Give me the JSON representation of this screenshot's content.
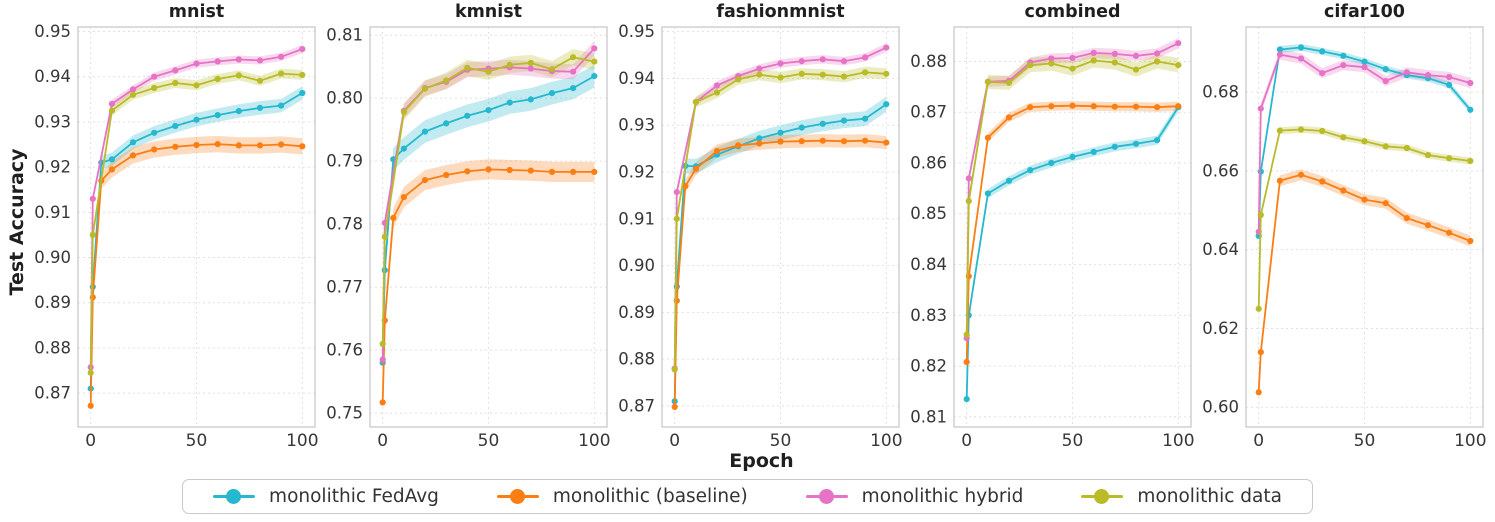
{
  "figure": {
    "ylabel": "Test Accuracy",
    "xlabel": "Epoch"
  },
  "legend": {
    "position": "bottom-center",
    "items": [
      {
        "key": "fedavg",
        "label": "monolithic FedAvg",
        "color": "#25b8ce"
      },
      {
        "key": "baseline",
        "label": "monolithic (baseline)",
        "color": "#fb7e14"
      },
      {
        "key": "hybrid",
        "label": "monolithic hybrid",
        "color": "#e673c5"
      },
      {
        "key": "data",
        "label": "monolithic data",
        "color": "#b9bb27"
      }
    ]
  },
  "chart_data": [
    {
      "type": "line",
      "title": "mnist",
      "xlim": [
        -6,
        106
      ],
      "ylim": [
        0.8625,
        0.951
      ],
      "xticks": [
        0,
        50,
        100
      ],
      "yticks": [
        0.87,
        0.88,
        0.89,
        0.9,
        0.91,
        0.92,
        0.93,
        0.94,
        0.95
      ],
      "grid": true,
      "series": [
        {
          "key": "fedavg",
          "band": 0.0015,
          "x": [
            0,
            1,
            5,
            10,
            20,
            30,
            40,
            50,
            60,
            70,
            80,
            90,
            100
          ],
          "y": [
            0.871,
            0.8935,
            0.921,
            0.9217,
            0.9255,
            0.9276,
            0.9291,
            0.9305,
            0.9315,
            0.9324,
            0.9331,
            0.9336,
            0.9364
          ]
        },
        {
          "key": "baseline",
          "band": 0.0018,
          "x": [
            0,
            1,
            5,
            10,
            20,
            30,
            40,
            50,
            60,
            70,
            80,
            90,
            100
          ],
          "y": [
            0.8672,
            0.8912,
            0.917,
            0.9195,
            0.9226,
            0.9239,
            0.9245,
            0.9249,
            0.9251,
            0.9248,
            0.9248,
            0.925,
            0.9246
          ]
        },
        {
          "key": "hybrid",
          "band": 0.0009,
          "x": [
            0,
            1,
            10,
            20,
            30,
            40,
            50,
            60,
            70,
            80,
            90,
            100
          ],
          "y": [
            0.8757,
            0.913,
            0.934,
            0.9372,
            0.94,
            0.9414,
            0.9429,
            0.9434,
            0.9438,
            0.9436,
            0.9444,
            0.9461
          ]
        },
        {
          "key": "data",
          "band": 0.0011,
          "x": [
            0,
            1,
            10,
            20,
            30,
            40,
            50,
            60,
            70,
            80,
            90,
            100
          ],
          "y": [
            0.8745,
            0.905,
            0.9325,
            0.936,
            0.9375,
            0.9386,
            0.9381,
            0.9395,
            0.9403,
            0.9391,
            0.9407,
            0.9404
          ]
        }
      ]
    },
    {
      "type": "line",
      "title": "kmnist",
      "xlim": [
        -6,
        106
      ],
      "ylim": [
        0.7478,
        0.8113
      ],
      "xticks": [
        0,
        50,
        100
      ],
      "yticks": [
        0.75,
        0.76,
        0.77,
        0.78,
        0.79,
        0.8,
        0.81
      ],
      "grid": true,
      "series": [
        {
          "key": "fedavg",
          "band": 0.0018,
          "x": [
            0,
            1,
            5,
            10,
            20,
            30,
            40,
            50,
            60,
            70,
            80,
            90,
            100
          ],
          "y": [
            0.758,
            0.7727,
            0.7903,
            0.792,
            0.7947,
            0.796,
            0.7972,
            0.7981,
            0.7993,
            0.7998,
            0.8008,
            0.8016,
            0.8035
          ]
        },
        {
          "key": "baseline",
          "band": 0.0016,
          "x": [
            0,
            1,
            5,
            10,
            20,
            30,
            40,
            50,
            60,
            70,
            80,
            90,
            100
          ],
          "y": [
            0.7517,
            0.7647,
            0.781,
            0.7843,
            0.787,
            0.7878,
            0.7884,
            0.7887,
            0.7886,
            0.7885,
            0.7883,
            0.7883,
            0.7883
          ]
        },
        {
          "key": "hybrid",
          "band": 0.0012,
          "x": [
            0,
            1,
            10,
            20,
            30,
            40,
            50,
            60,
            70,
            80,
            90,
            100
          ],
          "y": [
            0.7585,
            0.7802,
            0.798,
            0.8016,
            0.8026,
            0.8045,
            0.8047,
            0.8049,
            0.8047,
            0.8043,
            0.8042,
            0.8079
          ]
        },
        {
          "key": "data",
          "band": 0.0013,
          "x": [
            0,
            1,
            10,
            20,
            30,
            40,
            50,
            60,
            70,
            80,
            90,
            100
          ],
          "y": [
            0.761,
            0.778,
            0.7978,
            0.8015,
            0.8028,
            0.8048,
            0.8042,
            0.8053,
            0.8056,
            0.8046,
            0.8065,
            0.8058
          ]
        }
      ]
    },
    {
      "type": "line",
      "title": "fashionmnist",
      "xlim": [
        -6,
        106
      ],
      "ylim": [
        0.8655,
        0.951
      ],
      "xticks": [
        0,
        50,
        100
      ],
      "yticks": [
        0.87,
        0.88,
        0.89,
        0.9,
        0.91,
        0.92,
        0.93,
        0.94,
        0.95
      ],
      "grid": true,
      "series": [
        {
          "key": "fedavg",
          "band": 0.0016,
          "x": [
            0,
            1,
            5,
            10,
            20,
            30,
            40,
            50,
            60,
            70,
            80,
            90,
            100
          ],
          "y": [
            0.871,
            0.8955,
            0.9213,
            0.9212,
            0.9237,
            0.9255,
            0.9272,
            0.9284,
            0.9295,
            0.9303,
            0.931,
            0.9314,
            0.9345
          ]
        },
        {
          "key": "baseline",
          "band": 0.0014,
          "x": [
            0,
            1,
            5,
            10,
            20,
            30,
            40,
            50,
            60,
            70,
            80,
            90,
            100
          ],
          "y": [
            0.8698,
            0.8925,
            0.917,
            0.9207,
            0.9245,
            0.9257,
            0.9261,
            0.9265,
            0.9266,
            0.9267,
            0.9266,
            0.9267,
            0.9263
          ]
        },
        {
          "key": "hybrid",
          "band": 0.0009,
          "x": [
            0,
            1,
            10,
            20,
            30,
            40,
            50,
            60,
            70,
            80,
            90,
            100
          ],
          "y": [
            0.878,
            0.9157,
            0.935,
            0.9385,
            0.9405,
            0.9421,
            0.9432,
            0.9437,
            0.9441,
            0.9437,
            0.9445,
            0.9466
          ]
        },
        {
          "key": "data",
          "band": 0.0012,
          "x": [
            0,
            1,
            10,
            20,
            30,
            40,
            50,
            60,
            70,
            80,
            90,
            100
          ],
          "y": [
            0.8778,
            0.91,
            0.935,
            0.937,
            0.9398,
            0.9408,
            0.9402,
            0.941,
            0.9408,
            0.9404,
            0.9413,
            0.941
          ]
        }
      ]
    },
    {
      "type": "line",
      "title": "combined",
      "xlim": [
        -6,
        106
      ],
      "ylim": [
        0.808,
        0.8868
      ],
      "xticks": [
        0,
        50,
        100
      ],
      "yticks": [
        0.81,
        0.82,
        0.83,
        0.84,
        0.85,
        0.86,
        0.87,
        0.88
      ],
      "grid": true,
      "series": [
        {
          "key": "fedavg",
          "band": 0.0009,
          "x": [
            0,
            1,
            10,
            20,
            30,
            40,
            50,
            60,
            70,
            80,
            90,
            100
          ],
          "y": [
            0.8135,
            0.83,
            0.854,
            0.8565,
            0.8586,
            0.86,
            0.8612,
            0.8622,
            0.8632,
            0.8638,
            0.8645,
            0.871
          ]
        },
        {
          "key": "baseline",
          "band": 0.0009,
          "x": [
            0,
            1,
            10,
            20,
            30,
            40,
            50,
            60,
            70,
            80,
            90,
            100
          ],
          "y": [
            0.8208,
            0.8377,
            0.865,
            0.869,
            0.871,
            0.8712,
            0.8713,
            0.8712,
            0.8711,
            0.8711,
            0.871,
            0.8712
          ]
        },
        {
          "key": "hybrid",
          "band": 0.001,
          "x": [
            0,
            1,
            10,
            20,
            30,
            40,
            50,
            60,
            70,
            80,
            90,
            100
          ],
          "y": [
            0.8255,
            0.857,
            0.876,
            0.8762,
            0.8798,
            0.8806,
            0.8807,
            0.8817,
            0.8815,
            0.8811,
            0.8816,
            0.8836
          ]
        },
        {
          "key": "data",
          "band": 0.0014,
          "x": [
            0,
            1,
            10,
            20,
            30,
            40,
            50,
            60,
            70,
            80,
            90,
            100
          ],
          "y": [
            0.8262,
            0.8525,
            0.876,
            0.8758,
            0.8793,
            0.8796,
            0.8786,
            0.8802,
            0.8798,
            0.8784,
            0.88,
            0.8793
          ]
        }
      ]
    },
    {
      "type": "line",
      "title": "cifar100",
      "xlim": [
        -6,
        106
      ],
      "ylim": [
        0.595,
        0.6965
      ],
      "xticks": [
        0,
        50,
        100
      ],
      "yticks": [
        0.6,
        0.62,
        0.64,
        0.66,
        0.68
      ],
      "grid": true,
      "series": [
        {
          "key": "fedavg",
          "band": 0.0009,
          "x": [
            0,
            1,
            10,
            20,
            30,
            40,
            50,
            60,
            70,
            80,
            90,
            100
          ],
          "y": [
            0.6435,
            0.6598,
            0.6908,
            0.6913,
            0.6903,
            0.6892,
            0.6877,
            0.6858,
            0.6843,
            0.6835,
            0.6818,
            0.6755
          ]
        },
        {
          "key": "baseline",
          "band": 0.0014,
          "x": [
            0,
            1,
            10,
            20,
            30,
            40,
            50,
            60,
            70,
            80,
            90,
            100
          ],
          "y": [
            0.6038,
            0.614,
            0.6575,
            0.659,
            0.6573,
            0.655,
            0.6527,
            0.6518,
            0.648,
            0.6462,
            0.6443,
            0.6422
          ]
        },
        {
          "key": "hybrid",
          "band": 0.0013,
          "x": [
            0,
            1,
            10,
            20,
            30,
            40,
            50,
            60,
            70,
            80,
            90,
            100
          ],
          "y": [
            0.6445,
            0.6758,
            0.6895,
            0.6885,
            0.6848,
            0.6868,
            0.6863,
            0.6828,
            0.685,
            0.6843,
            0.6838,
            0.6823
          ]
        },
        {
          "key": "data",
          "band": 0.0009,
          "x": [
            0,
            1,
            10,
            20,
            30,
            40,
            50,
            60,
            70,
            80,
            90,
            100
          ],
          "y": [
            0.625,
            0.6488,
            0.6702,
            0.6705,
            0.6701,
            0.6685,
            0.6675,
            0.6662,
            0.6658,
            0.664,
            0.6632,
            0.6625
          ]
        }
      ]
    }
  ]
}
